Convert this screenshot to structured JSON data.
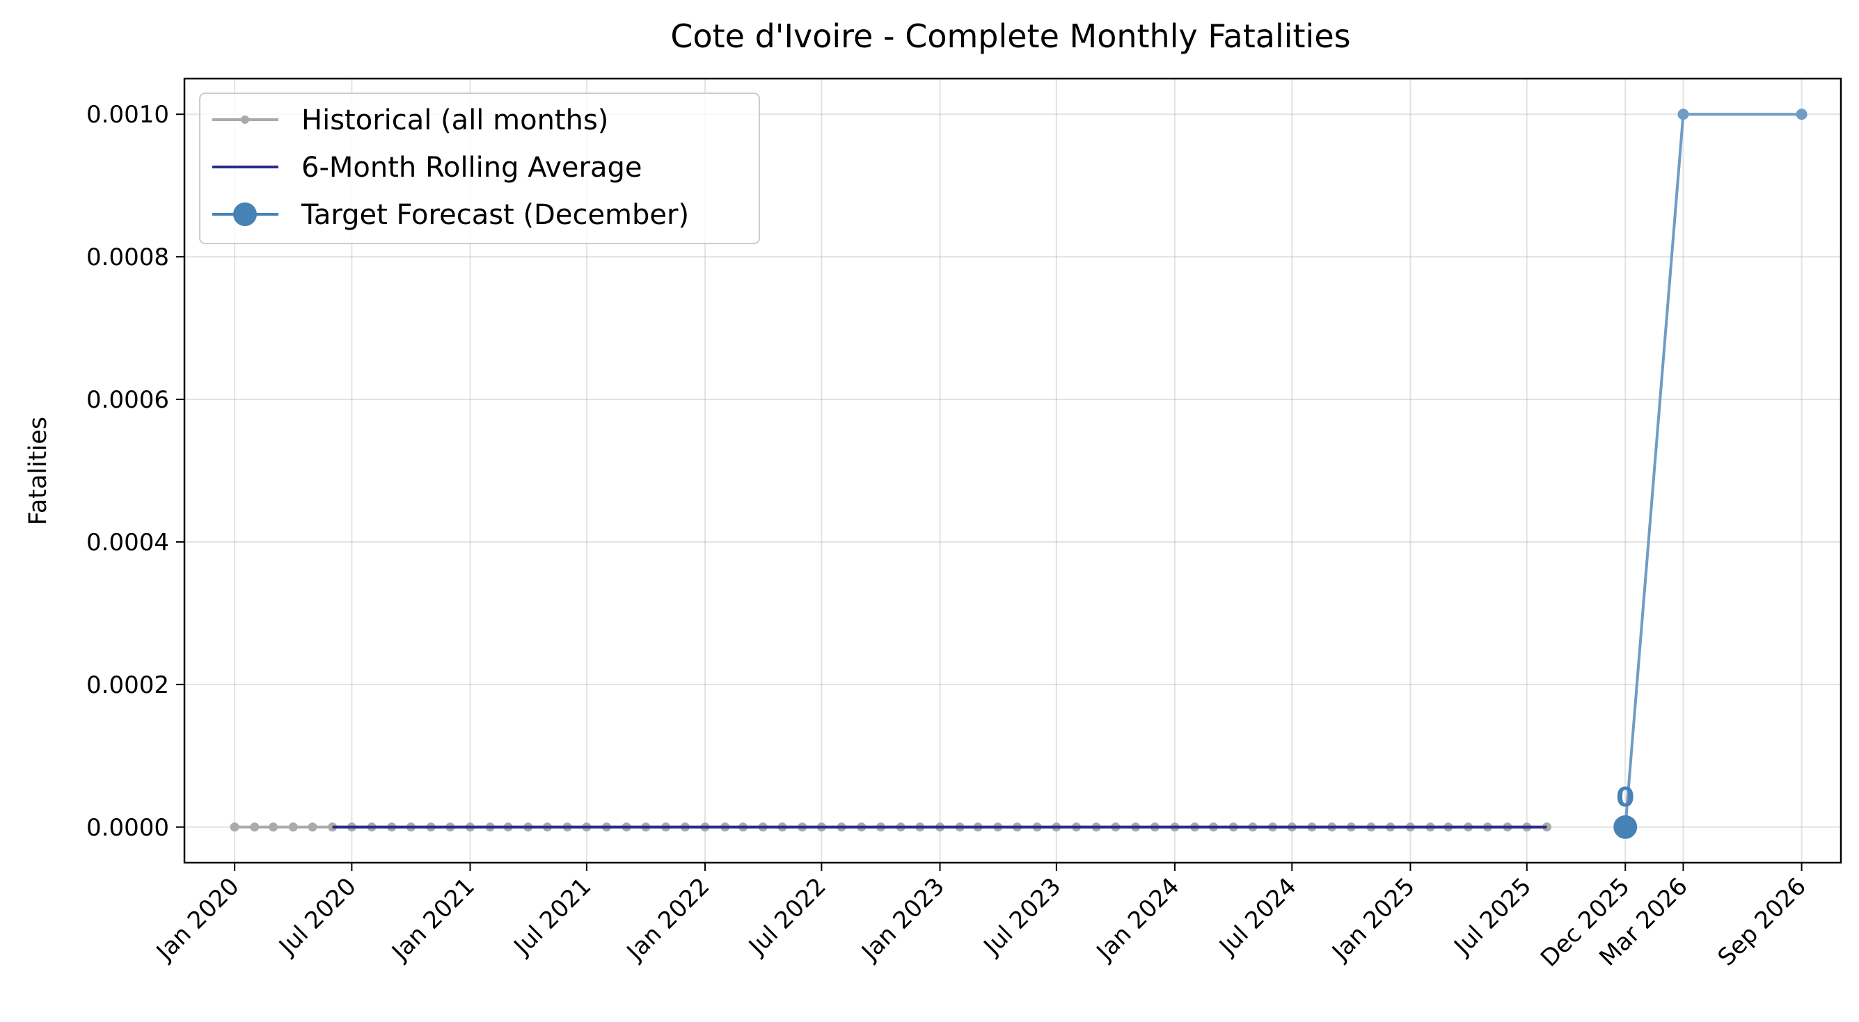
{
  "chart_data": {
    "type": "line",
    "title": "Cote d'Ivoire - Complete Monthly Fatalities",
    "xlabel": "",
    "ylabel": "Fatalities",
    "ylim": [
      -5e-05,
      0.00105
    ],
    "xlim": [
      "2019-10-15",
      "2026-11-01"
    ],
    "grid": true,
    "legend_position": "top-left",
    "y_ticks": [
      "0.0000",
      "0.0002",
      "0.0004",
      "0.0006",
      "0.0008",
      "0.0010"
    ],
    "y_tick_values": [
      0,
      0.0002,
      0.0004,
      0.0006,
      0.0008,
      0.001
    ],
    "x_ticks": [
      {
        "date": "2020-01-01",
        "label": "Jan 2020"
      },
      {
        "date": "2020-07-01",
        "label": "Jul 2020"
      },
      {
        "date": "2021-01-01",
        "label": "Jan 2021"
      },
      {
        "date": "2021-07-01",
        "label": "Jul 2021"
      },
      {
        "date": "2022-01-01",
        "label": "Jan 2022"
      },
      {
        "date": "2022-07-01",
        "label": "Jul 2022"
      },
      {
        "date": "2023-01-01",
        "label": "Jan 2023"
      },
      {
        "date": "2023-07-01",
        "label": "Jul 2023"
      },
      {
        "date": "2024-01-01",
        "label": "Jan 2024"
      },
      {
        "date": "2024-07-01",
        "label": "Jul 2024"
      },
      {
        "date": "2025-01-01",
        "label": "Jan 2025"
      },
      {
        "date": "2025-07-01",
        "label": "Jul 2025"
      },
      {
        "date": "2025-12-01",
        "label": "Dec 2025"
      },
      {
        "date": "2026-03-01",
        "label": "Mar 2026"
      },
      {
        "date": "2026-09-01",
        "label": "Sep 2026"
      }
    ],
    "series": [
      {
        "name": "Historical (all months)",
        "color": "#aaaaaa",
        "marker": "small-dot",
        "x_start": "2020-01-01",
        "x_end": "2025-08-01",
        "frequency": "monthly",
        "value": 0
      },
      {
        "name": "6-Month Rolling Average",
        "color": "#2b2b8a",
        "marker": "none",
        "x_start": "2020-06-01",
        "x_end": "2025-08-01",
        "frequency": "monthly",
        "value": 0
      },
      {
        "name": "Target Forecast (December)",
        "color": "#4682b4",
        "marker": "large-dot",
        "points": [
          {
            "x": "2025-12-01",
            "y": 0
          }
        ],
        "annotation": "0"
      },
      {
        "color": "#6f9cc4",
        "marker": "dot",
        "points": [
          {
            "x": "2025-12-01",
            "y": 0
          },
          {
            "x": "2026-03-01",
            "y": 0.001
          },
          {
            "x": "2026-09-01",
            "y": 0.001
          }
        ]
      }
    ]
  }
}
